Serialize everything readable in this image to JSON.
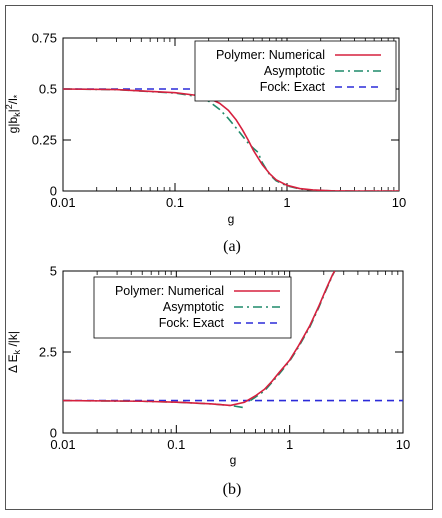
{
  "chart_data": [
    {
      "type": "line",
      "panel_caption": "(a)",
      "xlabel": "g",
      "ylabel": "g|b_k|²/l_*",
      "xscale": "log",
      "xlim": [
        0.01,
        10
      ],
      "ylim": [
        0,
        0.75
      ],
      "xticks": [
        "0.01",
        "0.1",
        "1",
        "10"
      ],
      "yticks": [
        "0",
        "0.25",
        "0.5",
        "0.75"
      ],
      "legend_position": "top-right",
      "legend": [
        {
          "group": "Polymer:",
          "label": "Numerical"
        },
        {
          "group": "",
          "label": "Asymptotic"
        },
        {
          "group": "Fock:",
          "label": "Exact"
        }
      ],
      "series": [
        {
          "name": "Numerical",
          "color": "#d6203e",
          "dash": "solid",
          "x": [
            0.01,
            0.03,
            0.1,
            0.15,
            0.2,
            0.25,
            0.3,
            0.35,
            0.4,
            0.45,
            0.5,
            0.6,
            0.7,
            0.8,
            1.0,
            1.3,
            1.7,
            2.5,
            4,
            10
          ],
          "y": [
            0.5,
            0.497,
            0.482,
            0.47,
            0.455,
            0.43,
            0.395,
            0.35,
            0.3,
            0.25,
            0.2,
            0.13,
            0.085,
            0.055,
            0.028,
            0.012,
            0.005,
            0.001,
            0.0,
            0.0
          ]
        },
        {
          "name": "Asymptotic",
          "color": "#1f8a6a",
          "dash": "dashdot",
          "x": [
            0.01,
            0.03,
            0.1,
            0.15,
            0.2,
            0.25,
            0.3,
            0.35,
            0.4,
            0.45,
            0.5,
            0.55,
            0.6,
            0.7,
            0.8,
            1.0,
            1.3,
            1.7,
            2.5,
            4,
            10
          ],
          "y": [
            0.5,
            0.497,
            0.48,
            0.465,
            0.44,
            0.4,
            0.355,
            0.31,
            0.27,
            0.235,
            0.21,
            0.19,
            0.14,
            0.08,
            0.05,
            0.025,
            0.01,
            0.004,
            0.001,
            0.0,
            0.0
          ]
        },
        {
          "name": "Exact",
          "color": "#2b2bd9",
          "dash": "dash",
          "x": [
            0.01,
            10
          ],
          "y": [
            0.5,
            0.5
          ]
        }
      ]
    },
    {
      "type": "line",
      "panel_caption": "(b)",
      "xlabel": "g",
      "ylabel": "Δ E_k /|k|",
      "xscale": "log",
      "xlim": [
        0.01,
        10
      ],
      "ylim": [
        0,
        5
      ],
      "xticks": [
        "0.01",
        "0.1",
        "1",
        "10"
      ],
      "yticks": [
        "0",
        "2.5",
        "5"
      ],
      "legend_position": "top-left",
      "legend": [
        {
          "group": "Polymer:",
          "label": "Numerical"
        },
        {
          "group": "",
          "label": "Asymptotic"
        },
        {
          "group": "Fock:",
          "label": "Exact"
        }
      ],
      "series": [
        {
          "name": "Numerical",
          "color": "#d6203e",
          "dash": "solid",
          "x": [
            0.01,
            0.05,
            0.1,
            0.2,
            0.3,
            0.4,
            0.5,
            0.6,
            0.7,
            0.8,
            1.0,
            1.2,
            1.5,
            1.8,
            2.1,
            2.4,
            2.5
          ],
          "y": [
            1.0,
            0.98,
            0.95,
            0.9,
            0.85,
            0.95,
            1.15,
            1.35,
            1.6,
            1.85,
            2.25,
            2.7,
            3.3,
            3.9,
            4.45,
            4.9,
            5.0
          ]
        },
        {
          "name": "Asymptotic",
          "color": "#1f8a6a",
          "dash": "dashdot",
          "x": [
            0.01,
            0.05,
            0.1,
            0.2,
            0.3,
            0.4
          ],
          "y": [
            1.0,
            0.98,
            0.95,
            0.9,
            0.85,
            0.78
          ],
          "x2": [
            0.45,
            0.6,
            0.8,
            1.0,
            1.2,
            1.5,
            1.8,
            2.1,
            2.4,
            2.5
          ],
          "y2": [
            1.0,
            1.3,
            1.8,
            2.22,
            2.66,
            3.26,
            3.86,
            4.42,
            4.88,
            5.0
          ]
        },
        {
          "name": "Exact",
          "color": "#2b2bd9",
          "dash": "dash",
          "x": [
            0.01,
            10
          ],
          "y": [
            1.0,
            1.0
          ]
        }
      ]
    }
  ]
}
